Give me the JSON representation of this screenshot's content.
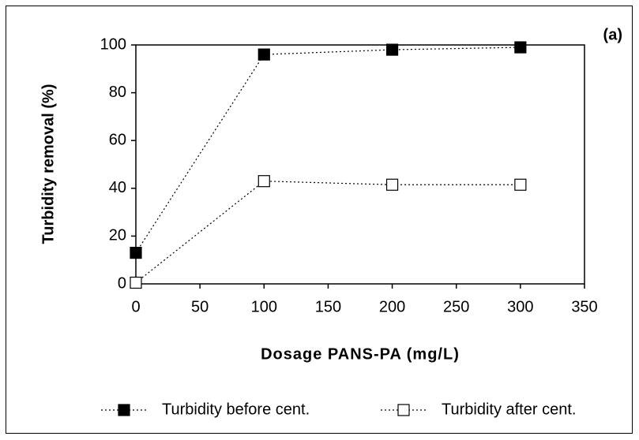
{
  "chart_data": {
    "type": "line",
    "annotation": "(a)",
    "x_label": "Dosage PANS-PA (mg/L)",
    "y_label": "Turbidity removal (%)",
    "x": [
      0,
      100,
      200,
      300
    ],
    "series": [
      {
        "name": "Turbidity before cent.",
        "color": "#000000",
        "marker_fill": "#000000",
        "values": [
          13,
          96,
          98,
          99
        ]
      },
      {
        "name": "Turbidity after cent.",
        "color": "#000000",
        "marker_fill": "#ffffff",
        "values": [
          0.5,
          43,
          41.5,
          41.5
        ]
      }
    ],
    "xlim": [
      0,
      350
    ],
    "xticks": [
      0,
      50,
      100,
      150,
      200,
      250,
      300,
      350
    ],
    "ylim": [
      0,
      100
    ],
    "yticks": [
      0,
      20,
      40,
      60,
      80,
      100
    ],
    "grid": false
  }
}
